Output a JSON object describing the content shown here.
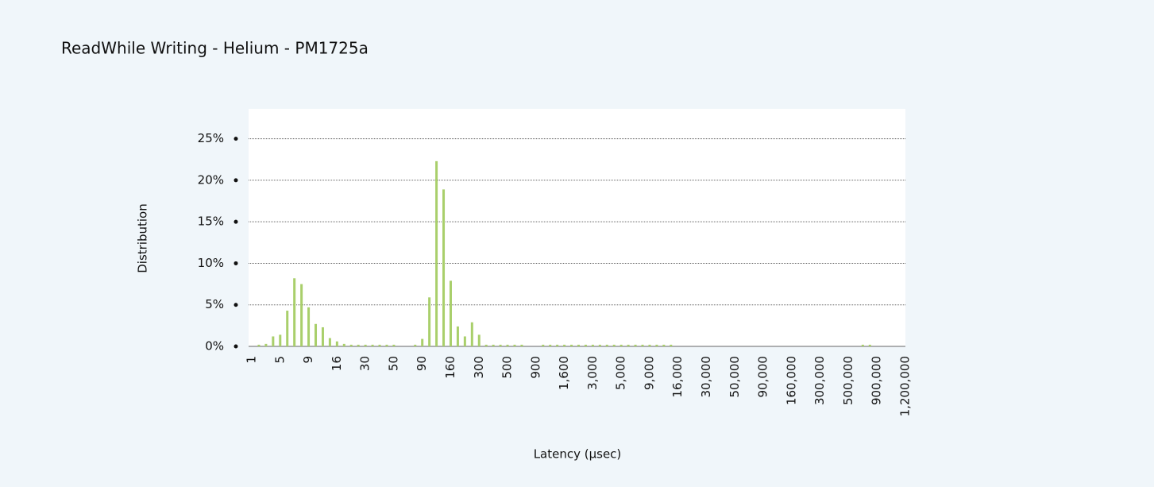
{
  "chart_data": {
    "type": "bar",
    "title": "ReadWhile Writing - Helium - PM1725a",
    "xlabel": "Latency (µsec)",
    "ylabel": "Distribution",
    "categories": [
      "1",
      null,
      null,
      null,
      "5",
      null,
      null,
      null,
      "9",
      null,
      null,
      null,
      "16",
      null,
      null,
      null,
      "30",
      null,
      null,
      null,
      "50",
      null,
      null,
      null,
      "90",
      null,
      null,
      null,
      "160",
      null,
      null,
      null,
      "300",
      null,
      null,
      null,
      "500",
      null,
      null,
      null,
      "900",
      null,
      null,
      null,
      "1,600",
      null,
      null,
      null,
      "3,000",
      null,
      null,
      null,
      "5,000",
      null,
      null,
      null,
      "9,000",
      null,
      null,
      null,
      "16,000",
      null,
      null,
      null,
      "30,000",
      null,
      null,
      null,
      "50,000",
      null,
      null,
      null,
      "90,000",
      null,
      null,
      null,
      "160,000",
      null,
      null,
      null,
      "300,000",
      null,
      null,
      null,
      "500,000",
      null,
      null,
      null,
      "900,000",
      null,
      null,
      null,
      "1,200,000"
    ],
    "values": [
      0,
      0.2,
      0.3,
      1.2,
      1.4,
      4.3,
      8.2,
      7.5,
      4.7,
      2.7,
      2.3,
      1.0,
      0.6,
      0.3,
      0.2,
      0.2,
      0.2,
      0.2,
      0.2,
      0.2,
      0.2,
      0,
      0,
      0.2,
      0.9,
      5.9,
      22.3,
      18.9,
      7.9,
      2.4,
      1.2,
      2.9,
      1.4,
      0.2,
      0.2,
      0.2,
      0.2,
      0.2,
      0.2,
      0,
      0,
      0.2,
      0.2,
      0.2,
      0.2,
      0.2,
      0.2,
      0.2,
      0.2,
      0.2,
      0.2,
      0.2,
      0.2,
      0.2,
      0.2,
      0.2,
      0.2,
      0.2,
      0.2,
      0.2,
      0,
      0,
      0,
      0,
      0,
      0,
      0,
      0,
      0,
      0,
      0,
      0,
      0,
      0,
      0,
      0,
      0,
      0,
      0,
      0,
      0,
      0,
      0,
      0,
      0,
      0,
      0.2,
      0.2,
      0,
      0,
      0,
      0,
      0
    ],
    "color": "#a9cf6b",
    "ylim": [
      0,
      28.6
    ],
    "yticks": [
      {
        "value": 0,
        "label": "0%"
      },
      {
        "value": 5,
        "label": "5%"
      },
      {
        "value": 10,
        "label": "10%"
      },
      {
        "value": 15,
        "label": "15%"
      },
      {
        "value": 20,
        "label": "20%"
      },
      {
        "value": 25,
        "label": "25%"
      }
    ],
    "grid": true
  }
}
